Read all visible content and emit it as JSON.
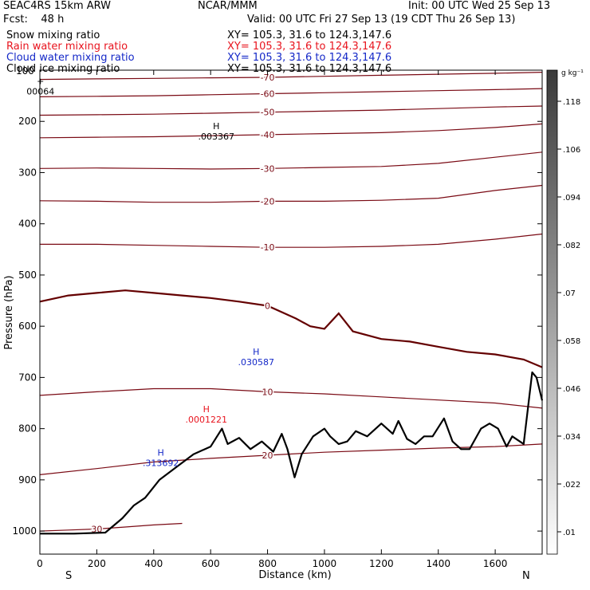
{
  "header": {
    "model": "SEAC4RS 15km ARW",
    "forecast": "Fcst:    48 h",
    "org": "NCAR/MMM",
    "init": "Init: 00 UTC Wed 25 Sep 13",
    "valid": "Valid: 00 UTC Fri 27 Sep 13 (19 CDT Thu 26 Sep 13)"
  },
  "fields": [
    {
      "name": "Snow mixing ratio",
      "xy": "XY= 105.3, 31.6 to 124.3,147.6",
      "color": "#000000"
    },
    {
      "name": "Rain water mixing ratio",
      "xy": "XY= 105.3, 31.6 to 124.3,147.6",
      "color": "#e8141e"
    },
    {
      "name": "Cloud water mixing ratio",
      "xy": "XY= 105.3, 31.6 to 124.3,147.6",
      "color": "#1428c8"
    },
    {
      "name": "Cloud ice mixing ratio",
      "xy": "XY= 105.3, 31.6 to 124.3,147.6",
      "color": "#000000"
    }
  ],
  "colors": {
    "temperature_contour": "#7a0a14",
    "freezing_contour": "#640000",
    "terrain": "#000000",
    "rain": "#e8141e",
    "cloud_water": "#1428c8"
  },
  "chart_data": {
    "type": "cross-section",
    "xlabel": "Distance (km)",
    "ylabel": "Pressure (hPa)",
    "xlim": [
      0,
      1765
    ],
    "ylim": [
      1045,
      100
    ],
    "x_ticks": [
      0,
      200,
      400,
      600,
      800,
      1000,
      1200,
      1400,
      1600
    ],
    "y_ticks": [
      200,
      300,
      400,
      500,
      600,
      700,
      800,
      900,
      1000
    ],
    "y_tick_labels": [
      "200",
      "300",
      "400",
      "500",
      "600",
      "700",
      "800",
      "900",
      "1000"
    ],
    "y_top_label": "100",
    "endpoints": {
      "left": "S",
      "right": "N"
    },
    "colorbar": {
      "unit": "g kg⁻¹",
      "labels": [
        ".01",
        ".022",
        ".034",
        ".046",
        ".058",
        ".07",
        ".082",
        ".094",
        ".106",
        ".118"
      ]
    },
    "terrain": {
      "x": [
        0,
        120,
        230,
        290,
        330,
        370,
        420,
        480,
        540,
        600,
        640,
        660,
        700,
        740,
        780,
        820,
        850,
        870,
        895,
        920,
        960,
        1000,
        1020,
        1050,
        1080,
        1110,
        1150,
        1200,
        1240,
        1260,
        1290,
        1320,
        1350,
        1380,
        1420,
        1450,
        1480,
        1510,
        1550,
        1580,
        1610,
        1640,
        1660,
        1700,
        1730,
        1745,
        1765
      ],
      "y": [
        1005,
        1005,
        1003,
        975,
        950,
        935,
        900,
        875,
        850,
        835,
        800,
        830,
        818,
        840,
        825,
        845,
        810,
        840,
        895,
        850,
        815,
        800,
        815,
        830,
        825,
        805,
        815,
        790,
        810,
        785,
        820,
        830,
        815,
        815,
        780,
        825,
        840,
        840,
        800,
        790,
        800,
        835,
        815,
        830,
        690,
        700,
        745
      ]
    },
    "temperature_contours": [
      {
        "label": "-70",
        "x": [
          0,
          200,
          400,
          600,
          800,
          1000,
          1200,
          1400,
          1600,
          1765
        ],
        "p": [
          118,
          117,
          116,
          115,
          114,
          112,
          110,
          108,
          106,
          104
        ]
      },
      {
        "label": "-60",
        "x": [
          0,
          200,
          400,
          600,
          800,
          1000,
          1200,
          1400,
          1600,
          1765
        ],
        "p": [
          152,
          151,
          150,
          148,
          146,
          144,
          142,
          140,
          138,
          136
        ]
      },
      {
        "label": "-50",
        "x": [
          0,
          200,
          400,
          600,
          800,
          1000,
          1200,
          1400,
          1600,
          1765
        ],
        "p": [
          188,
          187,
          186,
          184,
          182,
          180,
          178,
          175,
          172,
          170
        ]
      },
      {
        "label": "-40",
        "x": [
          0,
          200,
          400,
          600,
          800,
          1000,
          1200,
          1400,
          1600,
          1765
        ],
        "p": [
          232,
          231,
          230,
          228,
          226,
          224,
          222,
          218,
          212,
          205
        ]
      },
      {
        "label": "-30",
        "x": [
          0,
          200,
          400,
          600,
          800,
          1000,
          1200,
          1400,
          1600,
          1765
        ],
        "p": [
          292,
          291,
          292,
          293,
          292,
          290,
          288,
          282,
          270,
          260
        ]
      },
      {
        "label": "-20",
        "x": [
          0,
          200,
          400,
          600,
          800,
          1000,
          1200,
          1400,
          1600,
          1765
        ],
        "p": [
          355,
          356,
          358,
          358,
          356,
          356,
          354,
          350,
          335,
          325
        ]
      },
      {
        "label": "-10",
        "x": [
          0,
          200,
          400,
          600,
          800,
          1000,
          1200,
          1400,
          1600,
          1765
        ],
        "p": [
          440,
          440,
          442,
          444,
          446,
          446,
          444,
          440,
          430,
          420
        ]
      },
      {
        "label": "0",
        "x": [
          0,
          100,
          200,
          300,
          400,
          500,
          600,
          700,
          800,
          900,
          950,
          1000,
          1050,
          1100,
          1200,
          1300,
          1400,
          1500,
          1600,
          1700,
          1765
        ],
        "p": [
          552,
          540,
          535,
          530,
          535,
          540,
          545,
          552,
          560,
          585,
          600,
          605,
          575,
          610,
          625,
          630,
          640,
          650,
          655,
          665,
          680
        ]
      },
      {
        "label": "10",
        "x": [
          0,
          200,
          400,
          600,
          800,
          1000,
          1200,
          1400,
          1600,
          1765
        ],
        "p": [
          735,
          728,
          722,
          722,
          728,
          732,
          738,
          744,
          750,
          760
        ]
      },
      {
        "label": "20",
        "x": [
          0,
          200,
          400,
          600,
          800,
          1000,
          1200,
          1400,
          1600,
          1765
        ],
        "p": [
          890,
          878,
          865,
          858,
          852,
          846,
          842,
          838,
          835,
          830
        ]
      },
      {
        "label": "30",
        "x": [
          0,
          100,
          200,
          300,
          400,
          500
        ],
        "p": [
          1000,
          998,
          996,
          992,
          988,
          985
        ]
      }
    ],
    "annotations": [
      {
        "marker": "H",
        "value": ".003367",
        "x": 620,
        "p": 228,
        "color": "#000000"
      },
      {
        "marker": "H",
        "value": ".0001221",
        "x": 585,
        "p": 780,
        "color": "#e8141e"
      },
      {
        "marker": "H",
        "value": ".030587",
        "x": 760,
        "p": 668,
        "color": "#1428c8"
      },
      {
        "marker": "H",
        "value": ".313692",
        "x": 425,
        "p": 865,
        "color": "#1428c8"
      },
      {
        "marker": "+",
        "value": "00064",
        "x": 2,
        "p": 140,
        "color": "#000000"
      }
    ]
  }
}
